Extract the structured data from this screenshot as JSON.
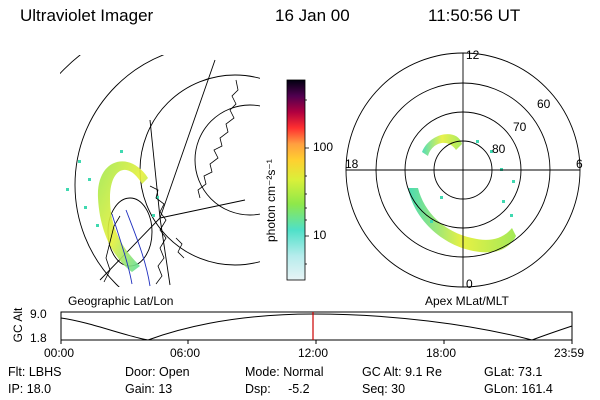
{
  "header": {
    "instrument": "Ultraviolet Imager",
    "date": "16 Jan 00",
    "time": "11:50:56 UT"
  },
  "colorbar": {
    "unit_label": "photon cm⁻²s⁻¹",
    "ticks": [
      "100",
      "10"
    ]
  },
  "left_panel": {
    "caption": "Geographic Lat/Lon"
  },
  "right_panel": {
    "caption": "Apex MLat/MLT",
    "mlt_labels": [
      "12",
      "18",
      "6",
      "0"
    ],
    "mlat_labels": [
      "60",
      "70",
      "80"
    ]
  },
  "altitude_plot": {
    "ylabel": "GC Alt",
    "yticks": [
      "9.0",
      "1.8"
    ],
    "xticks": [
      "00:00",
      "06:00",
      "12:00",
      "18:00",
      "23:59"
    ]
  },
  "status": {
    "filter": "Flt: LBHS",
    "door": "Door: Open",
    "mode": "Mode: Normal",
    "gc_alt": "GC Alt: 9.1 Re",
    "glat": "GLat:  73.1",
    "ip": "IP: 18.0",
    "gain": "Gain: 13",
    "dsp": "Dsp:     -5.2",
    "seq": "Seq: 30",
    "glon": "GLon: 161.4"
  },
  "colors": {
    "marker": "#cc0000",
    "aurora_gradient": [
      "#3fd9b0",
      "#9ee84f",
      "#e6f03a"
    ],
    "colorbar_stops": [
      "#e8f4f6",
      "#4fe0c8",
      "#8ee84a",
      "#d9f03a",
      "#ffa040",
      "#ff3030",
      "#b00040",
      "#500050",
      "#000010"
    ]
  }
}
